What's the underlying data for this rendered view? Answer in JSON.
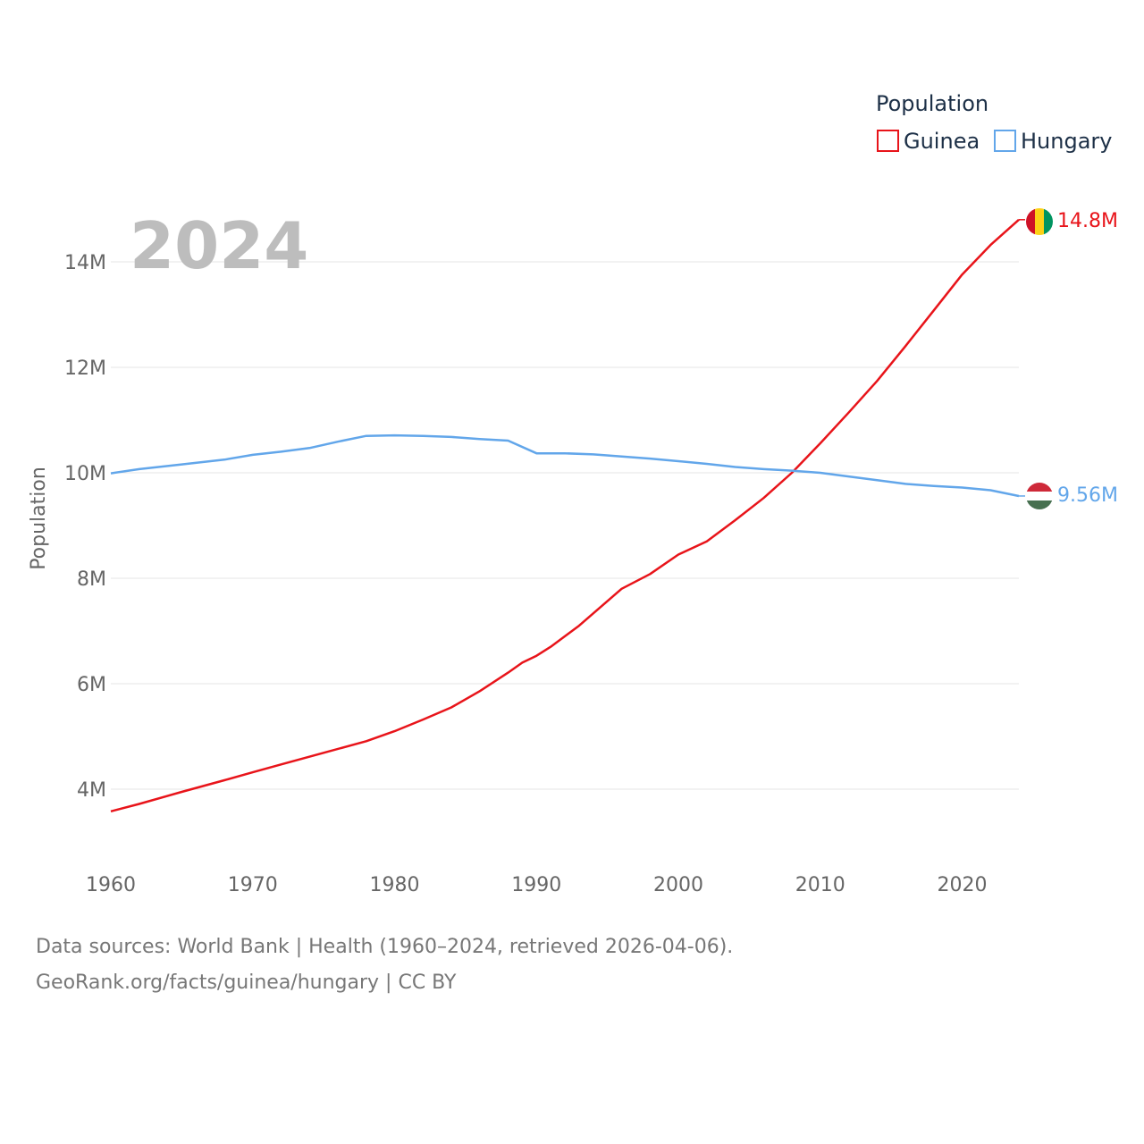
{
  "chart_data": {
    "type": "line",
    "year": "2024",
    "ylabel": "Population",
    "xlabel": "",
    "xlim": [
      1960,
      2024
    ],
    "ylim": [
      3000000,
      15200000
    ],
    "x_ticks": [
      1960,
      1970,
      1980,
      1990,
      2000,
      2010,
      2020
    ],
    "x_tick_labels": [
      "1960",
      "1970",
      "1980",
      "1990",
      "2000",
      "2010",
      "2020"
    ],
    "y_ticks": [
      4000000,
      6000000,
      8000000,
      10000000,
      12000000,
      14000000
    ],
    "y_tick_labels": [
      "4M",
      "6M",
      "8M",
      "10M",
      "12M",
      "14M"
    ],
    "legend": {
      "title": "Population",
      "position": "top-right"
    },
    "grid": true,
    "series": [
      {
        "name": "Guinea",
        "color": "#e8141a",
        "end_label": "14.8M",
        "flag": "guinea-flag",
        "x": [
          1960,
          1962,
          1965,
          1968,
          1970,
          1972,
          1975,
          1978,
          1980,
          1982,
          1984,
          1986,
          1988,
          1989,
          1990,
          1991,
          1993,
          1996,
          1998,
          2000,
          2002,
          2004,
          2006,
          2008,
          2010,
          2012,
          2014,
          2016,
          2018,
          2020,
          2022,
          2024
        ],
        "values": [
          3580000,
          3720000,
          3950000,
          4170000,
          4320000,
          4470000,
          4690000,
          4910000,
          5100000,
          5320000,
          5550000,
          5860000,
          6210000,
          6400000,
          6530000,
          6700000,
          7100000,
          7800000,
          8080000,
          8450000,
          8700000,
          9100000,
          9520000,
          10000000,
          10560000,
          11140000,
          11740000,
          12400000,
          13080000,
          13760000,
          14320000,
          14800000
        ]
      },
      {
        "name": "Hungary",
        "color": "#62a6ea",
        "end_label": "9.56M",
        "flag": "hungary-flag",
        "x": [
          1960,
          1962,
          1965,
          1968,
          1970,
          1972,
          1974,
          1976,
          1978,
          1980,
          1982,
          1984,
          1986,
          1988,
          1990,
          1992,
          1994,
          1996,
          1998,
          2000,
          2002,
          2004,
          2006,
          2008,
          2010,
          2012,
          2014,
          2016,
          2018,
          2020,
          2022,
          2024
        ],
        "values": [
          9990000,
          10070000,
          10160000,
          10250000,
          10340000,
          10400000,
          10470000,
          10590000,
          10700000,
          10710000,
          10700000,
          10680000,
          10640000,
          10610000,
          10370000,
          10370000,
          10350000,
          10310000,
          10270000,
          10220000,
          10170000,
          10110000,
          10070000,
          10040000,
          10000000,
          9930000,
          9860000,
          9790000,
          9750000,
          9720000,
          9670000,
          9560000
        ]
      }
    ]
  },
  "footer": {
    "line1": "Data sources: World Bank | Health (1960–2024, retrieved 2026-04-06).",
    "line2": "GeoRank.org/facts/guinea/hungary | CC BY"
  }
}
